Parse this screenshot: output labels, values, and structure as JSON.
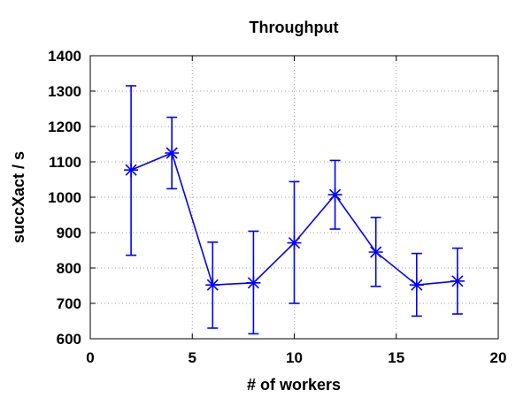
{
  "chart_data": {
    "type": "line",
    "title": "Throughput",
    "xlabel": "# of workers",
    "ylabel": "succXact / s",
    "xlim": [
      0,
      20
    ],
    "ylim": [
      600,
      1400
    ],
    "x_ticks": [
      0,
      5,
      10,
      15,
      20
    ],
    "y_ticks": [
      600,
      700,
      800,
      900,
      1000,
      1100,
      1200,
      1300,
      1400
    ],
    "grid": true,
    "legend": "none",
    "color": "#0000ff",
    "marker": "asterisk",
    "series": [
      {
        "x": [
          2,
          4,
          6,
          8,
          10,
          12,
          14,
          16,
          18
        ],
        "y": [
          1077,
          1125,
          752,
          758,
          871,
          1007,
          845,
          752,
          763
        ],
        "err_low": [
          836,
          1024,
          630,
          614,
          700,
          910,
          748,
          664,
          670
        ],
        "err_high": [
          1315,
          1226,
          873,
          904,
          1044,
          1104,
          943,
          841,
          856
        ]
      }
    ]
  }
}
